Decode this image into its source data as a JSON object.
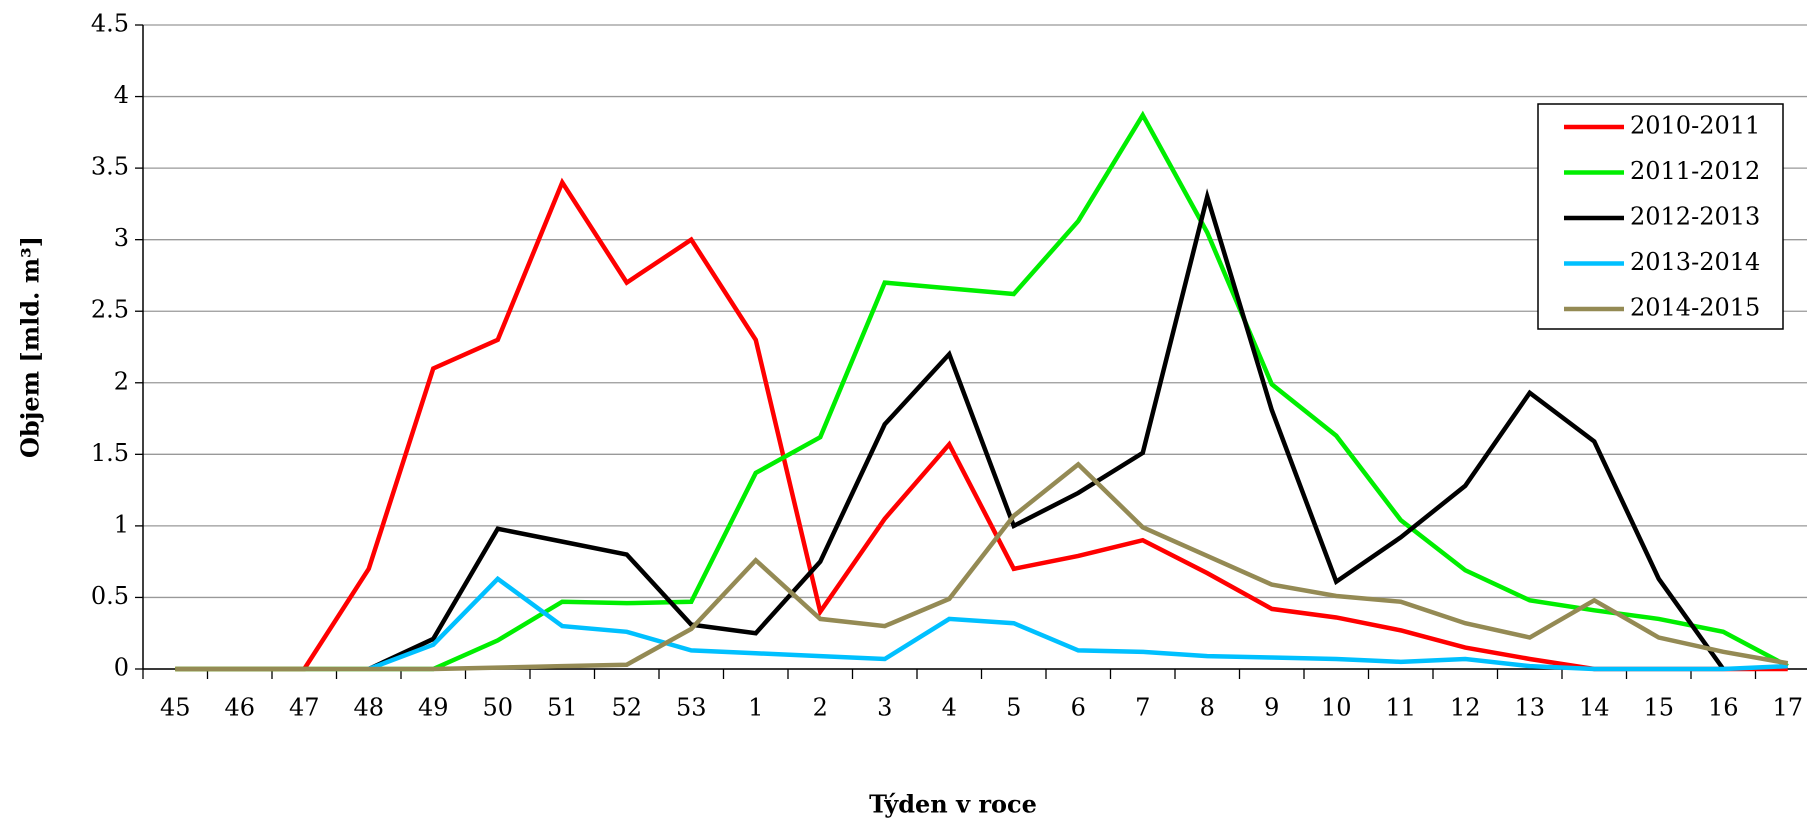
{
  "chart_data": {
    "type": "line",
    "xlabel": "Týden v roce",
    "ylabel": "Objem [mld. m³]",
    "categories": [
      "45",
      "46",
      "47",
      "48",
      "49",
      "50",
      "51",
      "52",
      "53",
      "1",
      "2",
      "3",
      "4",
      "5",
      "6",
      "7",
      "8",
      "9",
      "10",
      "11",
      "12",
      "13",
      "14",
      "15",
      "16",
      "17"
    ],
    "series": [
      {
        "name": "2010-2011",
        "color": "#ff0000",
        "values": [
          0,
          0,
          0,
          0.7,
          2.1,
          2.3,
          3.4,
          2.7,
          3.0,
          2.3,
          0.4,
          1.05,
          1.57,
          0.7,
          0.79,
          0.9,
          0.67,
          0.42,
          0.36,
          0.27,
          0.15,
          0.07,
          0,
          0,
          0,
          0
        ]
      },
      {
        "name": "2011-2012",
        "color": "#00ee00",
        "values": [
          0,
          0,
          0,
          0,
          0,
          0.2,
          0.47,
          0.46,
          0.47,
          1.37,
          1.62,
          2.7,
          2.66,
          2.62,
          3.13,
          3.87,
          3.05,
          1.99,
          1.63,
          1.04,
          0.69,
          0.48,
          0.41,
          0.35,
          0.26,
          0.02
        ]
      },
      {
        "name": "2012-2013",
        "color": "#000000",
        "values": [
          null,
          null,
          null,
          0,
          0.21,
          0.98,
          0.89,
          0.8,
          0.31,
          0.25,
          0.75,
          1.71,
          2.2,
          1.0,
          1.23,
          1.51,
          3.3,
          1.81,
          0.61,
          0.92,
          1.28,
          1.93,
          1.59,
          0.63,
          0,
          null
        ]
      },
      {
        "name": "2013-2014",
        "color": "#00c0ff",
        "values": [
          null,
          null,
          null,
          0,
          0.17,
          0.63,
          0.3,
          0.26,
          0.13,
          0.11,
          0.09,
          0.07,
          0.35,
          0.32,
          0.13,
          0.12,
          0.09,
          0.08,
          0.07,
          0.05,
          0.07,
          0.02,
          0,
          0,
          0,
          0.02
        ]
      },
      {
        "name": "2014-2015",
        "color": "#948a54",
        "values": [
          0,
          0,
          0,
          0,
          0,
          0.01,
          0.02,
          0.03,
          0.28,
          0.76,
          0.35,
          0.3,
          0.49,
          1.07,
          1.43,
          0.99,
          0.79,
          0.59,
          0.51,
          0.47,
          0.32,
          0.22,
          0.48,
          0.22,
          0.12,
          0.04
        ]
      }
    ],
    "ylim": [
      0,
      4.5
    ],
    "yticks": [
      0,
      0.5,
      1,
      1.5,
      2,
      2.5,
      3,
      3.5,
      4,
      4.5
    ],
    "grid": true,
    "legend": "upper right"
  }
}
